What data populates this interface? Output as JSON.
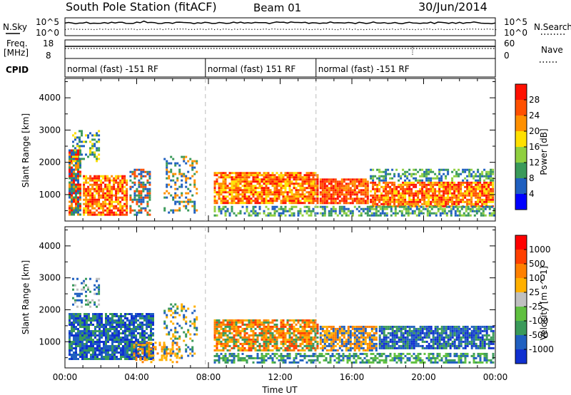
{
  "header": {
    "title": "South Pole Station (fitACF)",
    "beam": "Beam 01",
    "date": "30/Jun/2014"
  },
  "noise_panel": {
    "left_label": "N.Sky",
    "right_label": "N.Search",
    "left_ticks": [
      "10^5",
      "10^0"
    ],
    "right_ticks": [
      "10^5",
      "10^0"
    ]
  },
  "freq_panel": {
    "left_label_1": "Freq.",
    "left_label_2": "[MHz]",
    "right_label": "Nave",
    "left_ticks": [
      "18",
      "8"
    ],
    "right_ticks": [
      "60",
      "0"
    ]
  },
  "cpid": {
    "label": "CPID",
    "segments": [
      {
        "start_hour": 0,
        "text": "normal (fast) -151 RF"
      },
      {
        "start_hour": 7.833,
        "text": "normal (fast) 151 RF"
      },
      {
        "start_hour": 14,
        "text": "normal (fast) -151 RF"
      }
    ]
  },
  "chart_data": [
    {
      "type": "heatmap",
      "name": "power",
      "ylabel": "Slant Range [km]",
      "yticks": [
        "1000",
        "2000",
        "3000",
        "4000"
      ],
      "ylim": [
        180,
        4600
      ],
      "colorbar": {
        "label": "Power [dB]",
        "ticks": [
          "4",
          "8",
          "12",
          "16",
          "20",
          "24",
          "28"
        ],
        "colors": [
          "#0000ff",
          "#2060c0",
          "#3a9a5a",
          "#90d040",
          "#ffe000",
          "#ff9000",
          "#ff5000",
          "#ff1000"
        ]
      },
      "scatter_regions": [
        {
          "x0": 0.2,
          "x1": 1.0,
          "y0": 300,
          "y1": 2400,
          "density": 0.9,
          "colors": [
            "#2060c0",
            "#3a9a5a",
            "#ff9000",
            "#ff1000"
          ]
        },
        {
          "x0": 1.0,
          "x1": 3.6,
          "y0": 300,
          "y1": 1600,
          "density": 0.8,
          "colors": [
            "#ff1000",
            "#ff5000",
            "#ff9000",
            "#ffe000"
          ]
        },
        {
          "x0": 3.6,
          "x1": 4.9,
          "y0": 300,
          "y1": 1800,
          "density": 0.6,
          "colors": [
            "#2060c0",
            "#3a9a5a",
            "#ff5000"
          ]
        },
        {
          "x0": 0.4,
          "x1": 2.0,
          "y0": 2000,
          "y1": 3000,
          "density": 0.4,
          "colors": [
            "#2060c0",
            "#3a9a5a",
            "#ffe000"
          ]
        },
        {
          "x0": 5.5,
          "x1": 7.5,
          "y0": 400,
          "y1": 2200,
          "density": 0.35,
          "colors": [
            "#2060c0",
            "#3a9a5a",
            "#ff9000"
          ]
        },
        {
          "x0": 8.3,
          "x1": 14.2,
          "y0": 650,
          "y1": 1700,
          "density": 0.85,
          "colors": [
            "#ff1000",
            "#ff5000",
            "#ff9000",
            "#ffe000"
          ]
        },
        {
          "x0": 8.3,
          "x1": 14.2,
          "y0": 300,
          "y1": 650,
          "density": 0.5,
          "colors": [
            "#2060c0",
            "#3a9a5a",
            "#90d040"
          ]
        },
        {
          "x0": 14.2,
          "x1": 17.0,
          "y0": 700,
          "y1": 1500,
          "density": 0.85,
          "colors": [
            "#ff1000",
            "#ff5000",
            "#ff9000"
          ]
        },
        {
          "x0": 17.0,
          "x1": 24.0,
          "y0": 600,
          "y1": 1400,
          "density": 0.85,
          "colors": [
            "#ff1000",
            "#ff5000",
            "#ff9000",
            "#ffe000"
          ]
        },
        {
          "x0": 17.0,
          "x1": 24.0,
          "y0": 1400,
          "y1": 1800,
          "density": 0.5,
          "colors": [
            "#3a9a5a",
            "#90d040",
            "#2060c0"
          ]
        },
        {
          "x0": 14.2,
          "x1": 24.0,
          "y0": 300,
          "y1": 650,
          "density": 0.6,
          "colors": [
            "#3a9a5a",
            "#90d040",
            "#2060c0"
          ]
        }
      ]
    },
    {
      "type": "heatmap",
      "name": "velocity",
      "xlabel": "Time UT",
      "ylabel": "Slant Range [km]",
      "xticks": [
        "00:00",
        "04:00",
        "08:00",
        "12:00",
        "16:00",
        "20:00",
        "00:00"
      ],
      "yticks": [
        "1000",
        "2000",
        "3000",
        "4000"
      ],
      "ylim": [
        180,
        4600
      ],
      "colorbar": {
        "label": "Velocity [m s^-1]",
        "ticks": [
          "1000",
          "500",
          "100",
          "25",
          "-25",
          "-100",
          "-500",
          "-1000"
        ],
        "colors": [
          "#1030d0",
          "#2060c0",
          "#3a9a5a",
          "#60c040",
          "#c0c0c0",
          "#ffb000",
          "#ff8000",
          "#ff4000",
          "#ff0000"
        ]
      },
      "scatter_regions": [
        {
          "x0": 0.2,
          "x1": 5.0,
          "y0": 400,
          "y1": 1900,
          "density": 0.85,
          "colors": [
            "#1030d0",
            "#2060c0",
            "#3a9a5a"
          ]
        },
        {
          "x0": 0.4,
          "x1": 2.0,
          "y0": 2000,
          "y1": 3000,
          "density": 0.35,
          "colors": [
            "#3a9a5a",
            "#c0c0c0",
            "#2060c0"
          ]
        },
        {
          "x0": 3.8,
          "x1": 6.5,
          "y0": 300,
          "y1": 1000,
          "density": 0.4,
          "colors": [
            "#ff8000",
            "#ffb000"
          ]
        },
        {
          "x0": 5.5,
          "x1": 7.5,
          "y0": 400,
          "y1": 2200,
          "density": 0.3,
          "colors": [
            "#2060c0",
            "#3a9a5a",
            "#ffb000"
          ]
        },
        {
          "x0": 8.3,
          "x1": 14.2,
          "y0": 650,
          "y1": 1700,
          "density": 0.8,
          "colors": [
            "#ff8000",
            "#ffb000",
            "#3a9a5a",
            "#ff4000"
          ]
        },
        {
          "x0": 8.3,
          "x1": 24.0,
          "y0": 300,
          "y1": 650,
          "density": 0.6,
          "colors": [
            "#3a9a5a",
            "#60c040",
            "#2060c0"
          ]
        },
        {
          "x0": 14.2,
          "x1": 17.5,
          "y0": 650,
          "y1": 1500,
          "density": 0.8,
          "colors": [
            "#ff8000",
            "#ffb000",
            "#2060c0"
          ]
        },
        {
          "x0": 17.5,
          "x1": 24.0,
          "y0": 700,
          "y1": 1500,
          "density": 0.85,
          "colors": [
            "#1030d0",
            "#2060c0",
            "#3a9a5a"
          ]
        }
      ]
    }
  ]
}
